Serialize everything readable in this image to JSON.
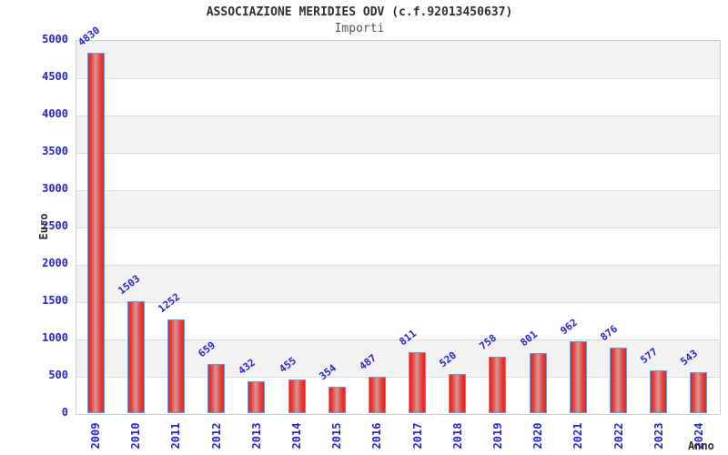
{
  "header": {
    "title": "ASSOCIAZIONE MERIDIES ODV (c.f.92013450637)",
    "subtitle": "Importi"
  },
  "chart_data": {
    "type": "bar",
    "title": "ASSOCIAZIONE MERIDIES ODV (c.f.92013450637)",
    "subtitle": "Importi",
    "xlabel": "Anno",
    "ylabel": "Euro",
    "categories": [
      "2009",
      "2010",
      "2011",
      "2012",
      "2013",
      "2014",
      "2015",
      "2016",
      "2017",
      "2018",
      "2019",
      "2020",
      "2021",
      "2022",
      "2023",
      "2024"
    ],
    "values": [
      4830,
      1503,
      1252,
      659,
      432,
      455,
      354,
      487,
      811,
      520,
      758,
      801,
      962,
      876,
      577,
      543
    ],
    "ylim": [
      0,
      5000
    ],
    "ytick_interval": 500,
    "yticks": [
      "0",
      "500",
      "1000",
      "1500",
      "2000",
      "2500",
      "3000",
      "3500",
      "4000",
      "4500",
      "5000"
    ],
    "grid": true,
    "legend_position": "none",
    "colors": {
      "bar_fill": "#ee1d1d",
      "bar_highlight": "#d19b97",
      "bar_border": "#64a0d8",
      "tick_label_text": "#2525cd",
      "value_label_text": "#2525cd",
      "title_text": "#2f2f2f",
      "subtitle_text": "#55555a",
      "axis_label_text": "#2c2c2c",
      "band_shaded": "#f2f2f2",
      "band_plain": "#ffffff",
      "gridline": "#dcdcdc",
      "plot_border": "#cfcfcf"
    }
  }
}
